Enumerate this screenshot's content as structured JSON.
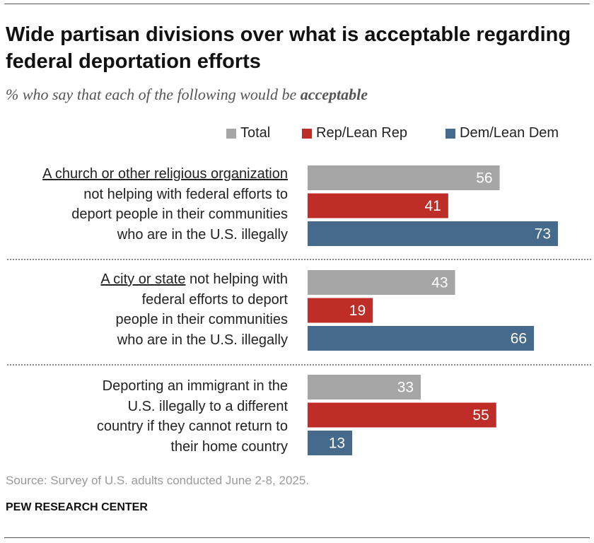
{
  "title": "Wide partisan divisions over what is acceptable regarding federal deportation efforts",
  "subtitle_prefix": "% who say that each of the following would be ",
  "subtitle_emphasis": "acceptable",
  "chart_data": {
    "type": "bar",
    "orientation": "horizontal",
    "title": "Wide partisan divisions over what is acceptable regarding federal deportation efforts",
    "subtitle": "% who say that each of the following would be acceptable",
    "legend": [
      "Total",
      "Rep/Lean Rep",
      "Dem/Lean Dem"
    ],
    "colors": {
      "Total": "#a6a6a6",
      "Rep/Lean Rep": "#be2d27",
      "Dem/Lean Dem": "#456a8b"
    },
    "categories": [
      {
        "lead": "A church or other religious organization",
        "rest": "not helping with federal efforts to deport people in their communities who are in the U.S. illegally",
        "lines": [
          "not helping with federal efforts to",
          "deport people in their communities",
          "who are in the U.S. illegally"
        ]
      },
      {
        "lead": "A city or state",
        "rest": " not helping with federal efforts to deport people in their communities who are in the U.S. illegally",
        "lines": [
          "federal efforts to deport",
          "people in their communities",
          "who are in the U.S. illegally"
        ],
        "first_line_rest": " not helping with"
      },
      {
        "lead": "",
        "rest": "Deporting an immigrant in the U.S. illegally to a different country if they cannot return to their home country",
        "lines": [
          "Deporting an immigrant in the",
          "U.S. illegally to a different",
          "country if they cannot return to",
          "their home country"
        ]
      }
    ],
    "series": [
      {
        "name": "Total",
        "values": [
          56,
          43,
          33
        ]
      },
      {
        "name": "Rep/Lean Rep",
        "values": [
          41,
          19,
          55
        ]
      },
      {
        "name": "Dem/Lean Dem",
        "values": [
          73,
          66,
          13
        ]
      }
    ],
    "xlim": [
      0,
      100
    ]
  },
  "source": "Source: Survey of U.S. adults conducted June 2-8, 2025.",
  "org": "PEW RESEARCH CENTER"
}
